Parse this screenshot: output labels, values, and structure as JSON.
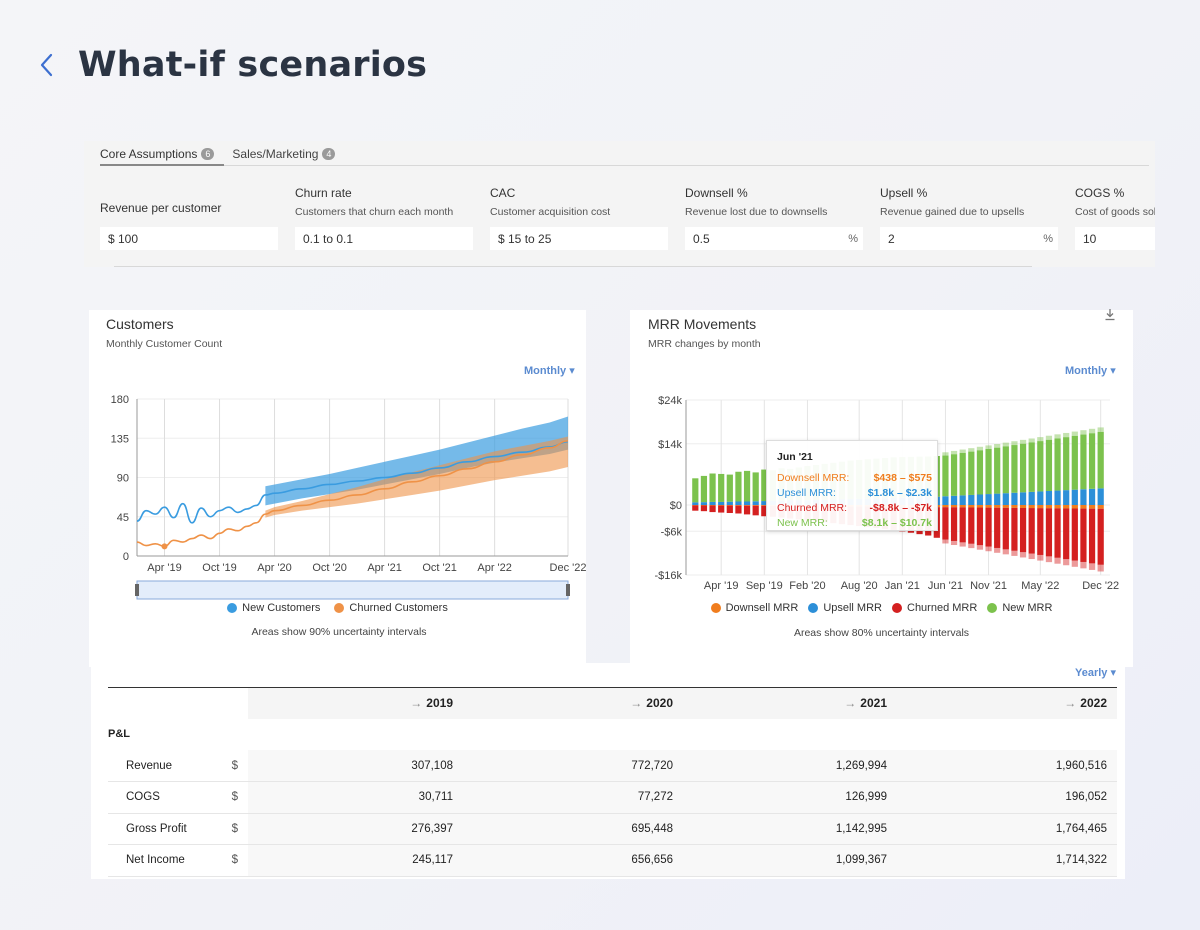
{
  "header": {
    "title": "What-if scenarios",
    "back_icon": "chevron-left-icon"
  },
  "assumptions": {
    "tabs": [
      {
        "label": "Core Assumptions",
        "count": "6"
      },
      {
        "label": "Sales/Marketing",
        "count": "4"
      }
    ],
    "fields": [
      {
        "label": "Revenue per customer",
        "sub": "",
        "value": "$ 100",
        "unit": ""
      },
      {
        "label": "Churn rate",
        "sub": "Customers that churn each month",
        "value": "0.1 to 0.1",
        "unit": ""
      },
      {
        "label": "CAC",
        "sub": "Customer acquisition cost",
        "value": "$ 15 to 25",
        "unit": ""
      },
      {
        "label": "Downsell %",
        "sub": "Revenue lost due to downsells",
        "value": "0.5",
        "unit": "%"
      },
      {
        "label": "Upsell %",
        "sub": "Revenue gained due to upsells",
        "value": "2",
        "unit": "%"
      },
      {
        "label": "COGS %",
        "sub": "Cost of goods sol",
        "value": "10",
        "unit": ""
      }
    ]
  },
  "customers_chart": {
    "title": "Customers",
    "subtitle": "Monthly Customer Count",
    "period": "Monthly",
    "note": "Areas show 90% uncertainty intervals",
    "colors": {
      "new": "#3a9ce0",
      "churned": "#ef9247"
    }
  },
  "mrr_chart": {
    "title": "MRR Movements",
    "subtitle": "MRR changes by month",
    "period": "Monthly",
    "note": "Areas show 80% uncertainty intervals",
    "download_icon": "download-icon",
    "tooltip": {
      "title": "Jun '21",
      "rows": [
        {
          "name": "Downsell MRR:",
          "value": "$438 – $575",
          "color": "#f07d1e"
        },
        {
          "name": "Upsell MRR:",
          "value": "$1.8k – $2.3k",
          "color": "#2c8fd8"
        },
        {
          "name": "Churned MRR:",
          "value": "-$8.8k – -$7k",
          "color": "#d42020"
        },
        {
          "name": "New MRR:",
          "value": "$8.1k – $10.7k",
          "color": "#7cc24d"
        }
      ]
    }
  },
  "chart_data": [
    {
      "type": "line",
      "title": "Customers",
      "subtitle": "Monthly Customer Count",
      "xlabel": "",
      "ylabel": "",
      "ylim": [
        0,
        180
      ],
      "yticks": [
        0,
        45,
        90,
        135,
        180
      ],
      "x_ticks": [
        "Apr '19",
        "Oct '19",
        "Apr '20",
        "Oct '20",
        "Apr '21",
        "Oct '21",
        "Apr '22",
        "Dec '22"
      ],
      "legend": "bottom",
      "grid": true,
      "x": [
        "Jan '19",
        "Feb '19",
        "Mar '19",
        "Apr '19",
        "May '19",
        "Jun '19",
        "Jul '19",
        "Aug '19",
        "Sep '19",
        "Oct '19",
        "Nov '19",
        "Dec '19",
        "Jan '20",
        "Feb '20",
        "Mar '20",
        "Apr '20",
        "Jul '20",
        "Oct '20",
        "Jan '21",
        "Apr '21",
        "Jul '21",
        "Oct '21",
        "Jan '22",
        "Apr '22",
        "Jul '22",
        "Oct '22",
        "Dec '22"
      ],
      "series": [
        {
          "name": "New Customers",
          "color": "#3a9ce0",
          "values": [
            40,
            52,
            48,
            56,
            44,
            60,
            38,
            55,
            45,
            52,
            56,
            50,
            54,
            58,
            70,
            72,
            77,
            82,
            86,
            90,
            95,
            101,
            108,
            114,
            119,
            125,
            131
          ],
          "band_low": [
            null,
            null,
            null,
            null,
            null,
            null,
            null,
            null,
            null,
            null,
            null,
            null,
            null,
            null,
            58,
            60,
            66,
            71,
            76,
            82,
            88,
            94,
            101,
            107,
            112,
            117,
            122
          ],
          "band_high": [
            null,
            null,
            null,
            null,
            null,
            null,
            null,
            null,
            null,
            null,
            null,
            null,
            null,
            null,
            80,
            82,
            88,
            94,
            101,
            108,
            115,
            122,
            130,
            138,
            146,
            153,
            160
          ]
        },
        {
          "name": "Churned Customers",
          "color": "#ef9247",
          "values": [
            16,
            12,
            14,
            11,
            18,
            16,
            20,
            24,
            20,
            26,
            31,
            29,
            34,
            38,
            48,
            52,
            58,
            64,
            70,
            77,
            85,
            92,
            100,
            108,
            116,
            124,
            132
          ],
          "band_low": [
            null,
            null,
            null,
            null,
            null,
            null,
            null,
            null,
            null,
            null,
            null,
            null,
            null,
            null,
            44,
            47,
            52,
            56,
            60,
            65,
            70,
            75,
            81,
            87,
            92,
            97,
            102
          ],
          "band_high": [
            null,
            null,
            null,
            null,
            null,
            null,
            null,
            null,
            null,
            null,
            null,
            null,
            null,
            null,
            52,
            56,
            63,
            71,
            79,
            88,
            96,
            104,
            112,
            120,
            126,
            132,
            137
          ]
        }
      ]
    },
    {
      "type": "bar",
      "stacked": true,
      "title": "MRR Movements",
      "subtitle": "MRR changes by month",
      "ylim": [
        -16000,
        24000
      ],
      "yticks": [
        {
          "value": 24000,
          "label": "$24k"
        },
        {
          "value": 14000,
          "label": "$14k"
        },
        {
          "value": 0,
          "label": "$0"
        },
        {
          "value": -6000,
          "label": "-$6k"
        },
        {
          "value": -16000,
          "label": "-$16k"
        }
      ],
      "x_ticks": [
        "Apr '19",
        "Sep '19",
        "Feb '20",
        "Aug '20",
        "Jan '21",
        "Jun '21",
        "Nov '21",
        "May '22",
        "Dec '22"
      ],
      "legend": "bottom",
      "grid": true,
      "categories": [
        "Jan '19",
        "Feb '19",
        "Mar '19",
        "Apr '19",
        "May '19",
        "Jun '19",
        "Jul '19",
        "Aug '19",
        "Sep '19",
        "Oct '19",
        "Nov '19",
        "Dec '19",
        "Jan '20",
        "Feb '20",
        "Mar '20",
        "Apr '20",
        "May '20",
        "Jun '20",
        "Jul '20",
        "Aug '20",
        "Sep '20",
        "Oct '20",
        "Nov '20",
        "Dec '20",
        "Jan '21",
        "Feb '21",
        "Mar '21",
        "Apr '21",
        "May '21",
        "Jun '21",
        "Jul '21",
        "Aug '21",
        "Sep '21",
        "Oct '21",
        "Nov '21",
        "Dec '21",
        "Jan '22",
        "Feb '22",
        "Mar '22",
        "Apr '22",
        "May '22",
        "Jun '22",
        "Jul '22",
        "Aug '22",
        "Sep '22",
        "Oct '22",
        "Nov '22",
        "Dec '22"
      ],
      "series": [
        {
          "name": "Downsell MRR",
          "color": "#f07d1e",
          "values": [
            -100,
            -110,
            -120,
            -130,
            -130,
            -140,
            -150,
            -160,
            -170,
            -180,
            -190,
            -200,
            -210,
            -220,
            -230,
            -240,
            -260,
            -280,
            -300,
            -320,
            -340,
            -360,
            -380,
            -400,
            -420,
            -440,
            -460,
            -480,
            -495,
            -505,
            -520,
            -540,
            -560,
            -580,
            -600,
            -620,
            -640,
            -660,
            -680,
            -700,
            -720,
            -740,
            -760,
            -780,
            -800,
            -820,
            -840,
            -860
          ]
        },
        {
          "name": "Upsell MRR",
          "color": "#2c8fd8",
          "values": [
            600,
            650,
            700,
            700,
            750,
            800,
            800,
            850,
            900,
            950,
            1000,
            1050,
            1100,
            1100,
            1150,
            1200,
            1250,
            1300,
            1350,
            1400,
            1450,
            1500,
            1550,
            1600,
            1650,
            1700,
            1750,
            1800,
            1900,
            2000,
            2100,
            2200,
            2300,
            2400,
            2500,
            2600,
            2700,
            2800,
            2900,
            3000,
            3100,
            3200,
            3300,
            3400,
            3500,
            3600,
            3700,
            3800
          ]
        },
        {
          "name": "Churned MRR",
          "color": "#d42020",
          "values": [
            -1200,
            -1300,
            -1500,
            -1600,
            -1700,
            -1800,
            -2000,
            -2200,
            -2400,
            -2500,
            -2700,
            -2900,
            -3100,
            -3300,
            -3500,
            -3700,
            -3900,
            -4100,
            -4300,
            -4500,
            -4700,
            -4900,
            -5100,
            -5300,
            -5600,
            -5900,
            -6200,
            -6500,
            -7000,
            -7400,
            -7700,
            -8000,
            -8300,
            -8600,
            -8900,
            -9200,
            -9500,
            -9800,
            -10100,
            -10400,
            -10700,
            -11000,
            -11300,
            -11600,
            -11900,
            -12200,
            -12500,
            -12800
          ]
        },
        {
          "name": "New MRR",
          "color": "#7cc24d",
          "values": [
            5500,
            6000,
            6500,
            6400,
            6200,
            6800,
            7000,
            6600,
            7200,
            7000,
            7400,
            7200,
            7500,
            7800,
            8000,
            8200,
            8400,
            8600,
            8800,
            8900,
            9000,
            9100,
            9200,
            9300,
            9300,
            9300,
            9300,
            9300,
            9300,
            9300,
            9500,
            9700,
            9900,
            10100,
            10300,
            10500,
            10700,
            10900,
            11100,
            11300,
            11500,
            11700,
            11900,
            12100,
            12300,
            12500,
            12700,
            12900
          ]
        }
      ]
    },
    {
      "type": "table",
      "period": "Yearly",
      "columns": [
        "2019",
        "2020",
        "2021",
        "2022"
      ],
      "section": "P&L",
      "rows": [
        {
          "name": "Revenue",
          "currency": "$",
          "values": [
            "307,108",
            "772,720",
            "1,269,994",
            "1,960,516"
          ]
        },
        {
          "name": "COGS",
          "currency": "$",
          "values": [
            "30,711",
            "77,272",
            "126,999",
            "196,052"
          ]
        },
        {
          "name": "Gross Profit",
          "currency": "$",
          "values": [
            "276,397",
            "695,448",
            "1,142,995",
            "1,764,465"
          ]
        },
        {
          "name": "Net Income",
          "currency": "$",
          "values": [
            "245,117",
            "656,656",
            "1,099,367",
            "1,714,322"
          ]
        }
      ]
    }
  ]
}
